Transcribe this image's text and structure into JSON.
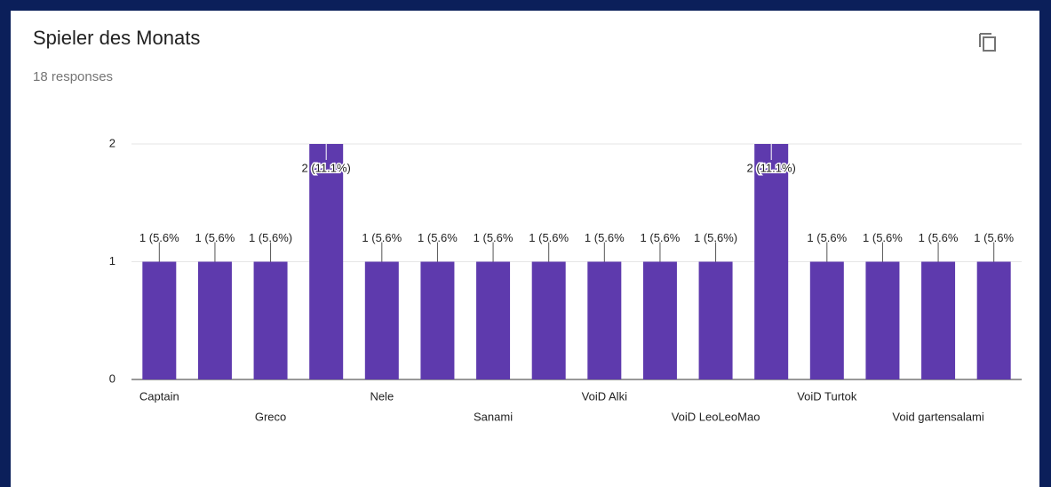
{
  "header": {
    "title": "Spieler des Monats",
    "subtitle": "18 responses"
  },
  "chart_data": {
    "type": "bar",
    "categories": [
      "Captain",
      null,
      "Greco",
      null,
      "Nele",
      null,
      "Sanami",
      null,
      "VoiD Alki",
      null,
      "VoiD LeoLeoMao",
      null,
      "VoiD Turtok",
      null,
      "Void gartensalami",
      null
    ],
    "values": [
      1,
      1,
      1,
      2,
      1,
      1,
      1,
      1,
      1,
      1,
      1,
      2,
      1,
      1,
      1,
      1
    ],
    "value_labels": [
      "1 (5.6%",
      "1 (5.6%",
      "1 (5.6%)",
      "2 (11.1%)",
      "1 (5.6%",
      "1 (5.6%",
      "1 (5.6%",
      "1 (5.6%",
      "1 (5.6%",
      "1 (5.6%",
      "1 (5.6%)",
      "2 (11.1%)",
      "1 (5.6%",
      "1 (5.6%",
      "1 (5.6%",
      "1 (5.6%"
    ],
    "color": "#5e3aad",
    "ylim": [
      0,
      2
    ],
    "yticks": [
      0,
      1,
      2
    ],
    "grid": true
  }
}
